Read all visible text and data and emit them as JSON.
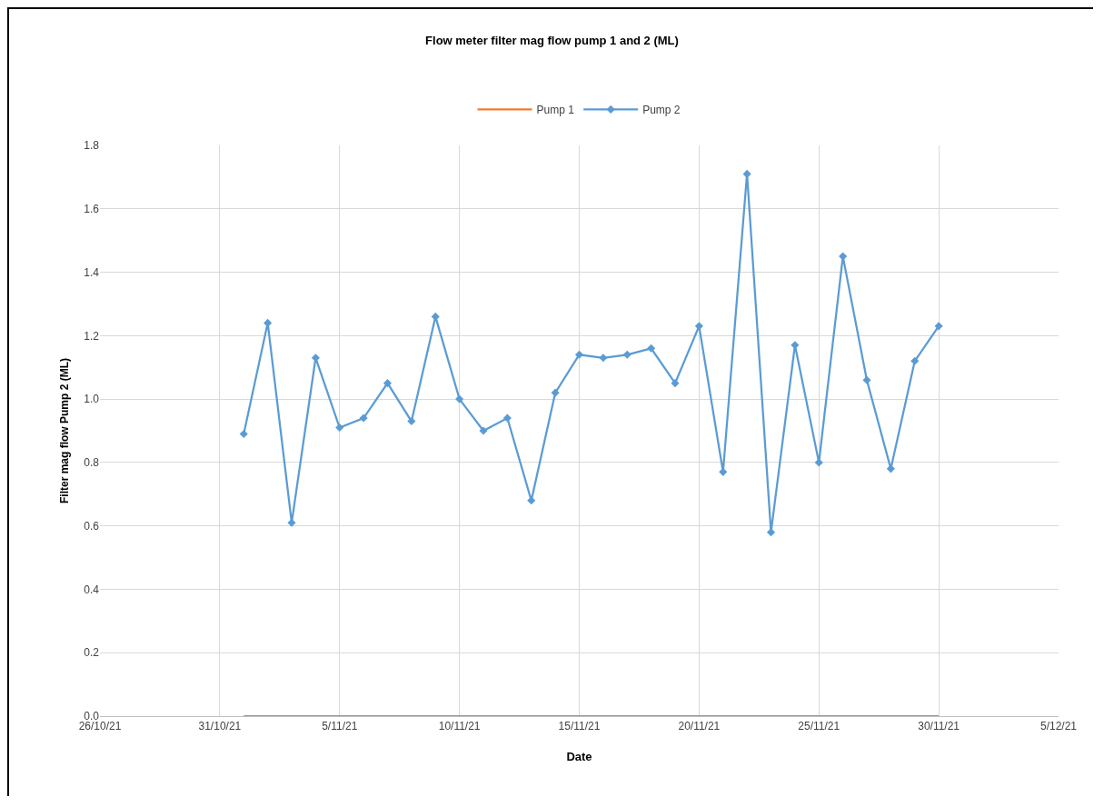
{
  "chart_data": {
    "type": "line",
    "title": "Flow meter filter mag flow pump 1 and 2 (ML)",
    "xlabel": "Date",
    "ylabel": "Filter mag flow Pump 2 (ML)",
    "x": [
      "--11-01",
      "--11-02",
      "--11-03",
      "--11-04",
      "--11-05",
      "--11-06",
      "--11-07",
      "--11-08",
      "--11-09",
      "--11-10",
      "--11-11",
      "--11-12",
      "--11-13",
      "--11-14",
      "--11-15",
      "--11-16",
      "--11-17",
      "--11-18",
      "--11-19",
      "--11-20",
      "--11-21",
      "--11-22",
      "--11-23",
      "--11-24",
      "--11-25",
      "--11-26",
      "--11-27",
      "--11-28",
      "--11-29",
      "--11-30"
    ],
    "series": [
      {
        "name": "Pump 1",
        "color": "#ed7d31",
        "marker": "none",
        "values": [
          0,
          0,
          0,
          0,
          0,
          0,
          0,
          0,
          0,
          0,
          0,
          0,
          0,
          0,
          0,
          0,
          0,
          0,
          0,
          0,
          0,
          0,
          0,
          0,
          0,
          0,
          0,
          0,
          0,
          0
        ]
      },
      {
        "name": "Pump 2",
        "color": "#5b9bd5",
        "values": [
          0.89,
          1.24,
          0.61,
          1.13,
          0.91,
          0.94,
          1.05,
          0.93,
          1.26,
          1.0,
          0.9,
          0.94,
          0.68,
          1.02,
          1.14,
          1.13,
          1.14,
          1.16,
          1.05,
          1.23,
          0.77,
          1.71,
          0.58,
          1.17,
          0.8,
          1.45,
          1.06,
          0.78,
          1.12,
          1.23
        ]
      }
    ],
    "xlim": [
      "--10-26",
      "--12-05"
    ],
    "xticks": [
      {
        "value": "--10-26",
        "label": "26/10/21"
      },
      {
        "value": "--10-31",
        "label": "31/10/21"
      },
      {
        "value": "--11-05",
        "label": "5/11/21"
      },
      {
        "value": "--11-10",
        "label": "10/11/21"
      },
      {
        "value": "--11-15",
        "label": "15/11/21"
      },
      {
        "value": "--11-20",
        "label": "20/11/21"
      },
      {
        "value": "--11-25",
        "label": "25/11/21"
      },
      {
        "value": "--11-30",
        "label": "30/11/21"
      },
      {
        "value": "--12-05",
        "label": "5/12/21"
      }
    ],
    "ylim": [
      0,
      1.8
    ],
    "yticks": [
      {
        "value": 0,
        "label": "0.0"
      },
      {
        "value": 0.2,
        "label": "0.2"
      },
      {
        "value": 0.4,
        "label": "0.4"
      },
      {
        "value": 0.6,
        "label": "0.6"
      },
      {
        "value": 0.8,
        "label": "0.8"
      },
      {
        "value": 1,
        "label": "1.0"
      },
      {
        "value": 1.2,
        "label": "1.2"
      },
      {
        "value": 1.4,
        "label": "1.4"
      },
      {
        "value": 1.6,
        "label": "1.6"
      },
      {
        "value": 1.8,
        "label": "1.8"
      }
    ],
    "grid": true,
    "legend": "top",
    "marker": "diamond",
    "line_style": "solid"
  }
}
